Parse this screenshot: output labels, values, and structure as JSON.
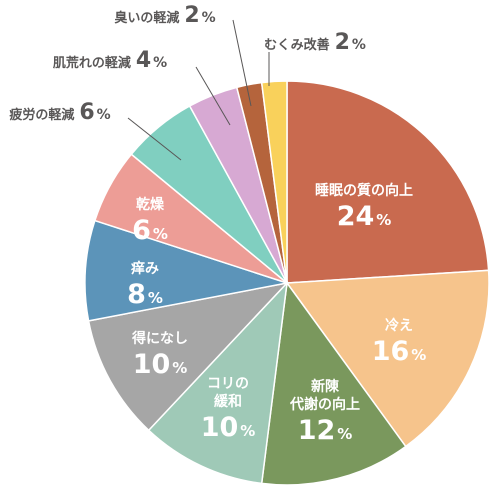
{
  "chart_data": {
    "type": "pie",
    "unit": "%",
    "slices": [
      {
        "label": "睡眠の質の向上",
        "value": 24,
        "color": "#c96a4f"
      },
      {
        "label": "冷え",
        "value": 16,
        "color": "#f6c48c"
      },
      {
        "label": "新陳\n代謝の向上",
        "value": 12,
        "color": "#7a985d"
      },
      {
        "label": "コリの\n緩和",
        "value": 10,
        "color": "#9fc9b7"
      },
      {
        "label": "得になし",
        "value": 10,
        "color": "#a6a6a6"
      },
      {
        "label": "痒み",
        "value": 8,
        "color": "#5c94b9"
      },
      {
        "label": "乾燥",
        "value": 6,
        "color": "#ed9d96"
      },
      {
        "label": "疲労の軽減",
        "value": 6,
        "color": "#80cfc0"
      },
      {
        "label": "肌荒れの軽減",
        "value": 4,
        "color": "#d7a9d3"
      },
      {
        "label": "臭いの軽減",
        "value": 2,
        "color": "#b5643c"
      },
      {
        "label": "むくみ改善",
        "value": 2,
        "color": "#f9d15b"
      }
    ]
  }
}
